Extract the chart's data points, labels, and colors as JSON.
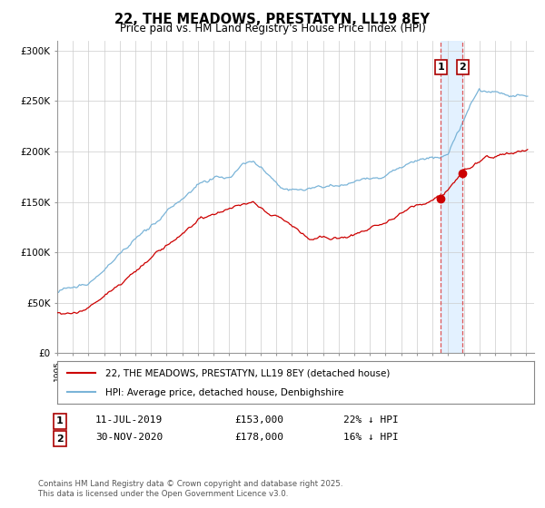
{
  "title": "22, THE MEADOWS, PRESTATYN, LL19 8EY",
  "subtitle": "Price paid vs. HM Land Registry's House Price Index (HPI)",
  "legend_line1": "22, THE MEADOWS, PRESTATYN, LL19 8EY (detached house)",
  "legend_line2": "HPI: Average price, detached house, Denbighshire",
  "annotation1_label": "1",
  "annotation1_date": "11-JUL-2019",
  "annotation1_price": "£153,000",
  "annotation1_hpi": "22% ↓ HPI",
  "annotation2_label": "2",
  "annotation2_date": "30-NOV-2020",
  "annotation2_price": "£178,000",
  "annotation2_hpi": "16% ↓ HPI",
  "footer": "Contains HM Land Registry data © Crown copyright and database right 2025.\nThis data is licensed under the Open Government Licence v3.0.",
  "hpi_color": "#7ab4d8",
  "price_color": "#cc0000",
  "vline_color": "#dd4444",
  "vband_color": "#ddeeff",
  "background_color": "#ffffff",
  "grid_color": "#cccccc",
  "ylim": [
    0,
    310000
  ],
  "yticks": [
    0,
    50000,
    100000,
    150000,
    200000,
    250000,
    300000
  ],
  "ytick_labels": [
    "£0",
    "£50K",
    "£100K",
    "£150K",
    "£200K",
    "£250K",
    "£300K"
  ],
  "sale1_year": 2019.53,
  "sale1_price": 153000,
  "sale2_year": 2020.92,
  "sale2_price": 178000,
  "xmin": 1995,
  "xmax": 2025.5
}
